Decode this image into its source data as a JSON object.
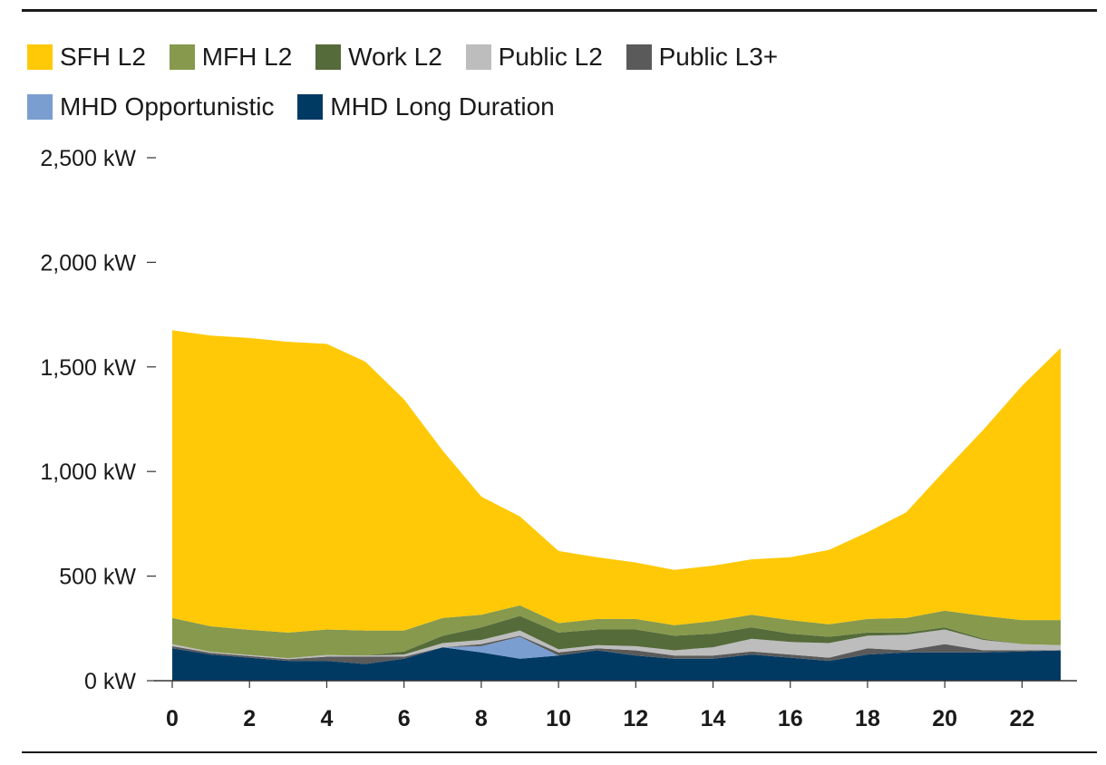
{
  "chart_data": {
    "type": "area",
    "stacked": true,
    "x": [
      0,
      1,
      2,
      3,
      4,
      5,
      6,
      7,
      8,
      9,
      10,
      11,
      12,
      13,
      14,
      15,
      16,
      17,
      18,
      19,
      20,
      21,
      22,
      23
    ],
    "xticks": [
      0,
      2,
      4,
      6,
      8,
      10,
      12,
      14,
      16,
      18,
      20,
      22
    ],
    "yticks": [
      0,
      500,
      1000,
      1500,
      2000,
      2500
    ],
    "ylim": [
      0,
      2500
    ],
    "y_unit": "kW",
    "ytick_labels": [
      "0 kW",
      "500 kW",
      "1,000 kW",
      "1,500 kW",
      "2,000 kW",
      "2,500 kW"
    ],
    "legend_position": "top-left",
    "series": [
      {
        "name": "MHD Long Duration",
        "color": "#003a63",
        "values": [
          155,
          125,
          110,
          95,
          95,
          80,
          105,
          160,
          135,
          105,
          120,
          145,
          120,
          105,
          105,
          125,
          110,
          95,
          125,
          135,
          135,
          135,
          140,
          145
        ]
      },
      {
        "name": "MHD Opportunistic",
        "color": "#7a9ecf",
        "values": [
          0,
          0,
          0,
          0,
          0,
          0,
          0,
          0,
          30,
          105,
          0,
          0,
          0,
          0,
          0,
          0,
          0,
          0,
          0,
          0,
          0,
          0,
          0,
          0
        ]
      },
      {
        "name": "Public L3+",
        "color": "#5a5a5a",
        "values": [
          10,
          8,
          8,
          8,
          20,
          35,
          10,
          0,
          10,
          5,
          15,
          10,
          25,
          15,
          15,
          15,
          15,
          15,
          30,
          10,
          40,
          10,
          5,
          0
        ]
      },
      {
        "name": "Public L2",
        "color": "#bdbdbd",
        "values": [
          10,
          5,
          5,
          5,
          8,
          5,
          10,
          20,
          20,
          25,
          15,
          15,
          20,
          25,
          40,
          60,
          60,
          70,
          60,
          75,
          70,
          50,
          30,
          25
        ]
      },
      {
        "name": "Work L2",
        "color": "#556b3a",
        "values": [
          0,
          0,
          0,
          0,
          0,
          0,
          15,
          35,
          60,
          70,
          80,
          75,
          80,
          70,
          65,
          55,
          40,
          30,
          15,
          10,
          10,
          5,
          0,
          0
        ]
      },
      {
        "name": "MFH L2",
        "color": "#86994d",
        "values": [
          125,
          122,
          120,
          122,
          122,
          120,
          100,
          85,
          60,
          50,
          45,
          50,
          50,
          50,
          60,
          60,
          65,
          60,
          65,
          70,
          80,
          110,
          115,
          120
        ]
      },
      {
        "name": "SFH L2",
        "color": "#ffc907",
        "values": [
          1375,
          1390,
          1395,
          1390,
          1365,
          1285,
          1105,
          800,
          565,
          425,
          345,
          295,
          270,
          265,
          265,
          265,
          300,
          355,
          415,
          505,
          670,
          890,
          1120,
          1300
        ]
      }
    ]
  },
  "legend": [
    {
      "label": "SFH L2",
      "color": "#ffc907"
    },
    {
      "label": "MFH L2",
      "color": "#86994d"
    },
    {
      "label": "Work L2",
      "color": "#556b3a"
    },
    {
      "label": "Public L2",
      "color": "#bdbdbd"
    },
    {
      "label": "Public L3+",
      "color": "#5a5a5a"
    },
    {
      "label": "MHD Opportunistic",
      "color": "#7a9ecf"
    },
    {
      "label": "MHD Long Duration",
      "color": "#003a63"
    }
  ]
}
